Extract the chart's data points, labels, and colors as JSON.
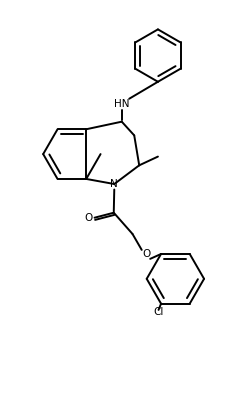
{
  "background_color": "#ffffff",
  "line_color": "#000000",
  "line_width": 1.4,
  "figsize": [
    2.51,
    3.93
  ],
  "dpi": 100,
  "xlim": [
    0,
    10
  ],
  "ylim": [
    0,
    15.7
  ]
}
